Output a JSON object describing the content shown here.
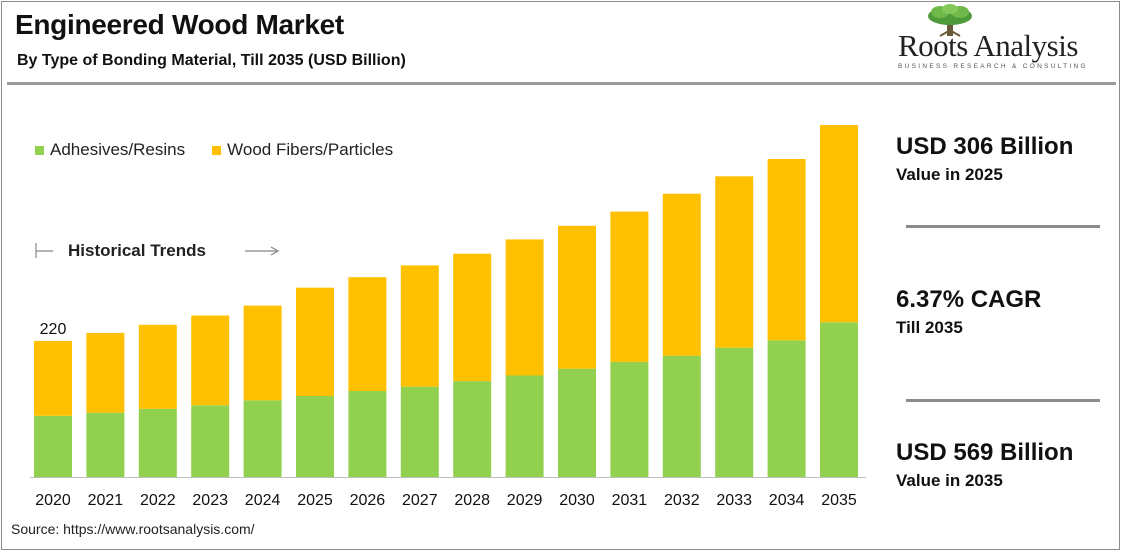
{
  "header": {
    "title": "Engineered Wood Market",
    "subtitle": "By Type of Bonding Material, Till 2035 (USD Billion)"
  },
  "logo": {
    "name": "Roots Analysis",
    "tagline": "BUSINESS RESEARCH & CONSULTING"
  },
  "annotations": {
    "historical_trends": "Historical Trends"
  },
  "highlights": [
    {
      "value": "USD 306 Billion",
      "label": "Value in 2025"
    },
    {
      "value": "6.37% CAGR",
      "label": "Till 2035"
    },
    {
      "value": "USD 569 Billion",
      "label": "Value in 2035"
    }
  ],
  "source": "Source: https://www.rootsanalysis.com/",
  "colors": {
    "adhesives": "#92d050",
    "fibers": "#ffc000",
    "accent_rule": "#8c8c8c"
  },
  "chart_data": {
    "type": "bar",
    "stacked": true,
    "title": "Engineered Wood Market",
    "categories": [
      "2020",
      "2021",
      "2022",
      "2023",
      "2024",
      "2025",
      "2026",
      "2027",
      "2028",
      "2029",
      "2030",
      "2031",
      "2032",
      "2033",
      "2034",
      "2035"
    ],
    "series": [
      {
        "name": "Adhesives/Resins",
        "values": [
          99,
          104,
          110,
          116,
          124,
          131,
          139,
          146,
          155,
          164,
          175,
          186,
          196,
          209,
          221,
          250
        ]
      },
      {
        "name": "Wood Fibers/Particles",
        "values": [
          121,
          129,
          136,
          145,
          153,
          175,
          184,
          196,
          206,
          220,
          231,
          243,
          262,
          277,
          293,
          319
        ]
      }
    ],
    "data_labels": [
      {
        "category": "2020",
        "text": "220"
      }
    ],
    "ylim": [
      0,
      569
    ],
    "legend_position": "top-left",
    "grid": false
  }
}
